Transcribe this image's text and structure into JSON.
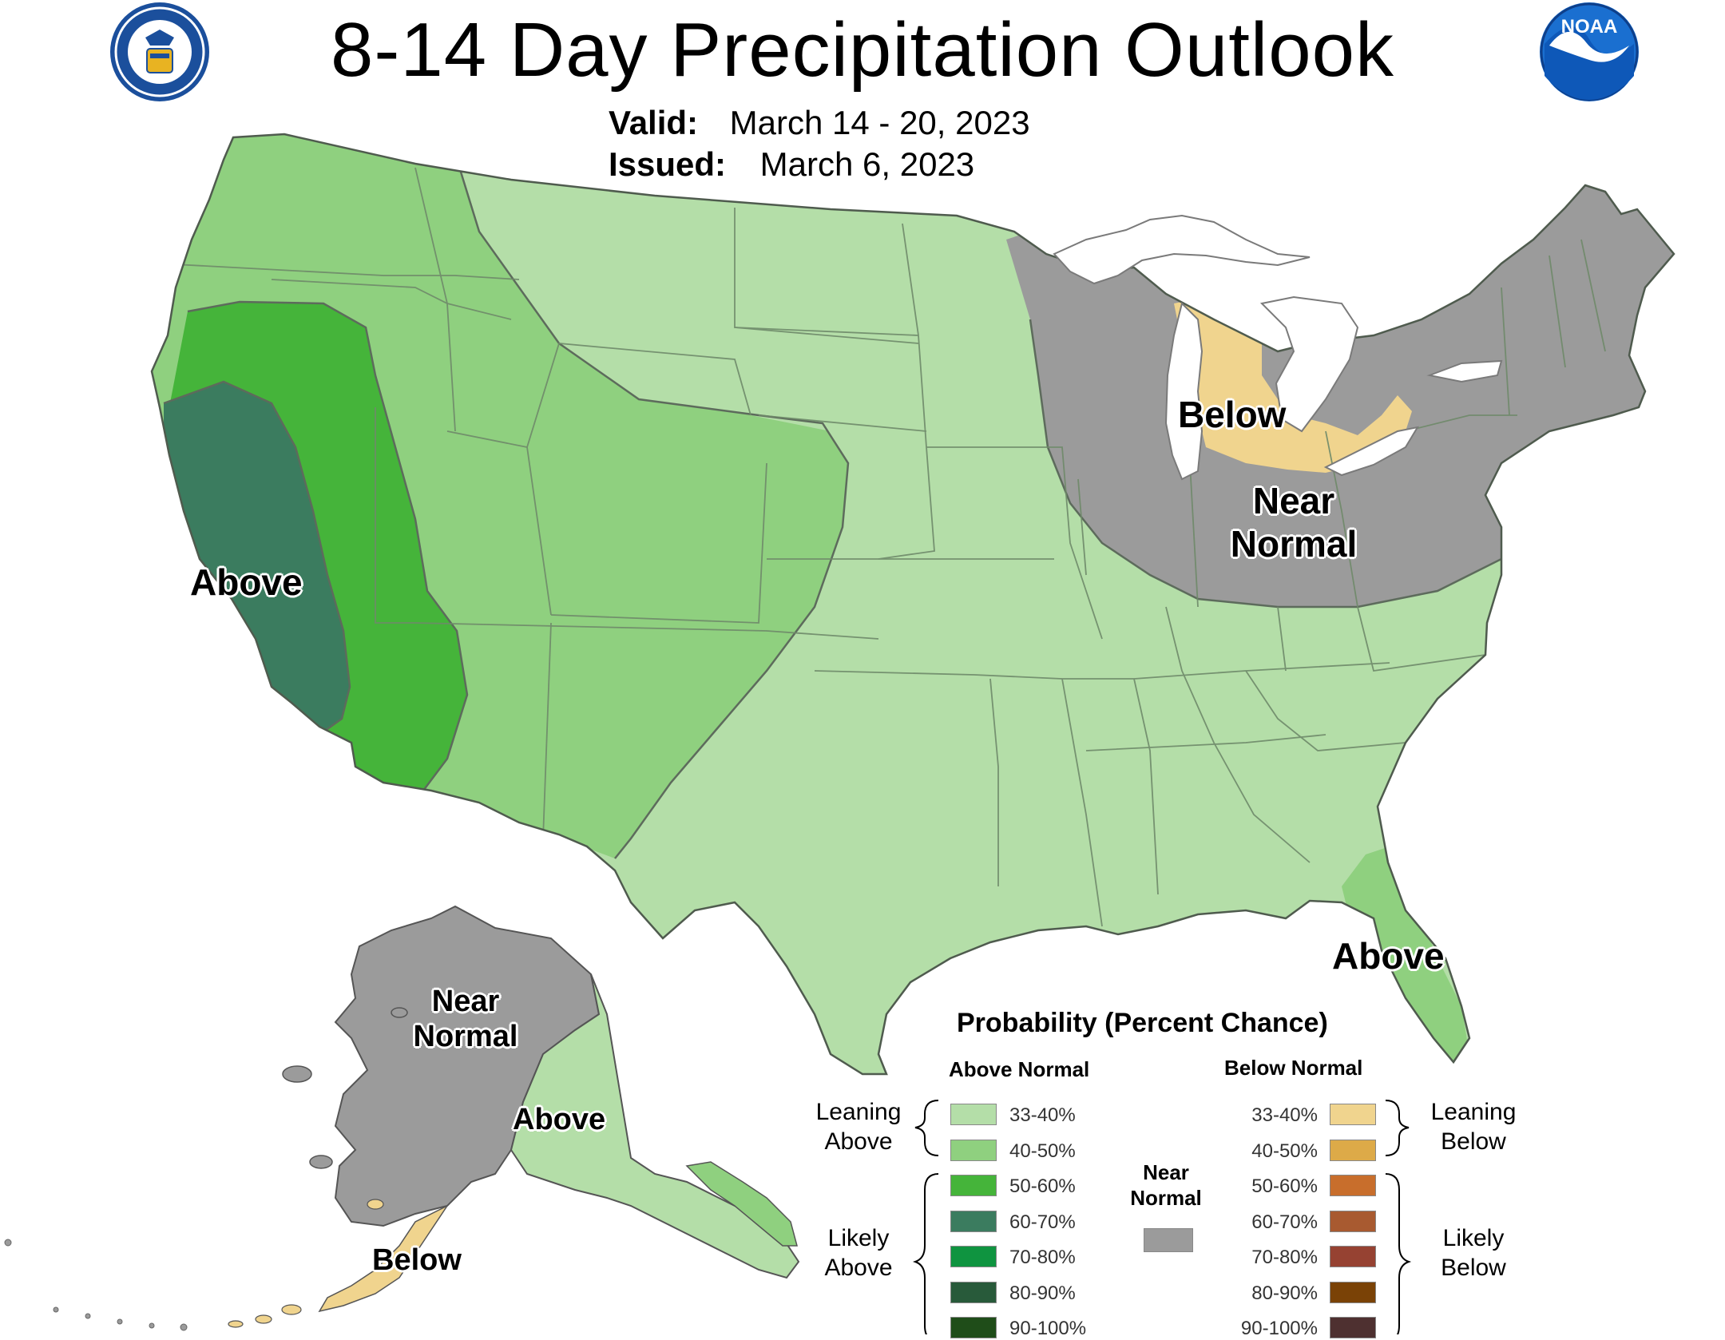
{
  "title": "8-14 Day Precipitation Outlook",
  "valid": {
    "label": "Valid:",
    "value": "March 14 - 20, 2023"
  },
  "issued": {
    "label": "Issued:",
    "value": "March 6, 2023"
  },
  "colors": {
    "water": "#ffffff",
    "state_border": "#6f8a6a",
    "above_33_40": "#b4dea8",
    "above_40_50": "#8fd07f",
    "above_50_60": "#45b43a",
    "above_60_70": "#3b7c5f",
    "near_normal": "#9b9b9b",
    "below_33_40": "#f0d48e"
  },
  "map_labels": {
    "west_above": "Above",
    "michigan_below": "Below",
    "northeast_near": "Near",
    "northeast_normal": "Normal",
    "florida_above": "Above",
    "alaska_near": "Near",
    "alaska_normal": "Normal",
    "alaska_above": "Above",
    "alaska_below": "Below"
  },
  "legend": {
    "title": "Probability (Percent Chance)",
    "above_header": "Above Normal",
    "below_header": "Below Normal",
    "near_normal_line1": "Near",
    "near_normal_line2": "Normal",
    "leaning_above_1": "Leaning",
    "leaning_above_2": "Above",
    "likely_above_1": "Likely",
    "likely_above_2": "Above",
    "leaning_below_1": "Leaning",
    "leaning_below_2": "Below",
    "likely_below_1": "Likely",
    "likely_below_2": "Below",
    "above": [
      {
        "range": "33-40%",
        "color": "#b4dea8"
      },
      {
        "range": "40-50%",
        "color": "#8fd07f"
      },
      {
        "range": "50-60%",
        "color": "#45b43a"
      },
      {
        "range": "60-70%",
        "color": "#3b7c5f"
      },
      {
        "range": "70-80%",
        "color": "#0f9440"
      },
      {
        "range": "80-90%",
        "color": "#285a3a"
      },
      {
        "range": "90-100%",
        "color": "#1f4d19"
      }
    ],
    "below": [
      {
        "range": "33-40%",
        "color": "#f0d48e"
      },
      {
        "range": "40-50%",
        "color": "#ddaa48"
      },
      {
        "range": "50-60%",
        "color": "#c86e2c"
      },
      {
        "range": "60-70%",
        "color": "#a85a30"
      },
      {
        "range": "70-80%",
        "color": "#964232"
      },
      {
        "range": "80-90%",
        "color": "#7a4206"
      },
      {
        "range": "90-100%",
        "color": "#4e3030"
      }
    ],
    "near_color": "#9b9b9b"
  },
  "logos": {
    "commerce": "department-of-commerce-seal-icon",
    "noaa": "noaa-logo-icon",
    "noaa_text": "NOAA"
  }
}
